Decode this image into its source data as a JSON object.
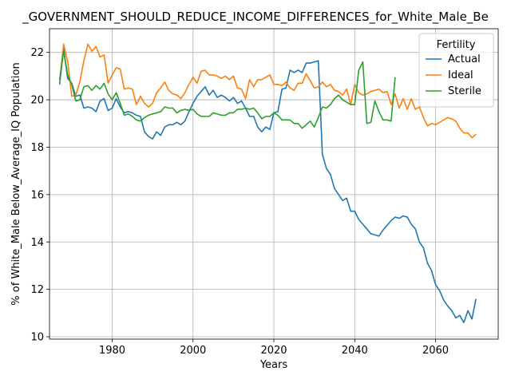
{
  "chart_data": {
    "type": "line",
    "title": "_GOVERNMENT_SHOULD_REDUCE_INCOME_DIFFERENCES_for_White_Male_Be",
    "xlabel": "Years",
    "ylabel": "% of White_Male Below_Average_IQ Population",
    "xlim": [
      1964.5,
      2075.5
    ],
    "ylim": [
      9.9,
      23.0
    ],
    "xticks": [
      1980,
      2000,
      2020,
      2040,
      2060
    ],
    "yticks": [
      10,
      12,
      14,
      16,
      18,
      20,
      22
    ],
    "grid": true,
    "legend": {
      "title": "Fertility",
      "position": "top-right"
    },
    "series": [
      {
        "name": "Actual",
        "color": "#1f77b4",
        "points": [
          [
            1967,
            20.65
          ],
          [
            1968,
            22.15
          ],
          [
            1969,
            20.9
          ],
          [
            1970,
            20.7
          ],
          [
            1971,
            20.15
          ],
          [
            1972,
            20.2
          ],
          [
            1973,
            19.65
          ],
          [
            1974,
            19.7
          ],
          [
            1975,
            19.65
          ],
          [
            1976,
            19.5
          ],
          [
            1977,
            19.95
          ],
          [
            1978,
            20.05
          ],
          [
            1979,
            19.55
          ],
          [
            1980,
            19.65
          ],
          [
            1981,
            20.05
          ],
          [
            1982,
            19.7
          ],
          [
            1983,
            19.45
          ],
          [
            1984,
            19.5
          ],
          [
            1985,
            19.45
          ],
          [
            1986,
            19.35
          ],
          [
            1987,
            19.3
          ],
          [
            1988,
            18.65
          ],
          [
            1989,
            18.45
          ],
          [
            1990,
            18.35
          ],
          [
            1991,
            18.65
          ],
          [
            1992,
            18.5
          ],
          [
            1993,
            18.85
          ],
          [
            1994,
            18.95
          ],
          [
            1995,
            18.95
          ],
          [
            1996,
            19.05
          ],
          [
            1997,
            18.95
          ],
          [
            1998,
            19.1
          ],
          [
            1999,
            19.5
          ],
          [
            2000,
            19.85
          ],
          [
            2001,
            20.15
          ],
          [
            2002,
            20.35
          ],
          [
            2003,
            20.55
          ],
          [
            2004,
            20.2
          ],
          [
            2005,
            20.4
          ],
          [
            2006,
            20.1
          ],
          [
            2007,
            20.2
          ],
          [
            2008,
            20.1
          ],
          [
            2009,
            19.95
          ],
          [
            2010,
            20.1
          ],
          [
            2011,
            19.85
          ],
          [
            2012,
            19.95
          ],
          [
            2013,
            19.65
          ],
          [
            2014,
            19.3
          ],
          [
            2015,
            19.3
          ],
          [
            2016,
            18.85
          ],
          [
            2017,
            18.65
          ],
          [
            2018,
            18.85
          ],
          [
            2019,
            18.75
          ],
          [
            2020,
            19.45
          ],
          [
            2021,
            19.5
          ],
          [
            2022,
            20.45
          ],
          [
            2023,
            20.5
          ],
          [
            2024,
            21.25
          ],
          [
            2025,
            21.15
          ],
          [
            2026,
            21.25
          ],
          [
            2027,
            21.15
          ],
          [
            2028,
            21.55
          ],
          [
            2029,
            21.55
          ],
          [
            2030,
            21.6
          ],
          [
            2031,
            21.65
          ],
          [
            2032,
            17.7
          ],
          [
            2033,
            17.1
          ],
          [
            2034,
            16.85
          ],
          [
            2035,
            16.25
          ],
          [
            2036,
            16.0
          ],
          [
            2037,
            15.75
          ],
          [
            2038,
            15.85
          ],
          [
            2039,
            15.3
          ],
          [
            2040,
            15.3
          ],
          [
            2041,
            14.95
          ],
          [
            2042,
            14.75
          ],
          [
            2043,
            14.55
          ],
          [
            2044,
            14.35
          ],
          [
            2045,
            14.3
          ],
          [
            2046,
            14.25
          ],
          [
            2047,
            14.5
          ],
          [
            2048,
            14.7
          ],
          [
            2049,
            14.9
          ],
          [
            2050,
            15.05
          ],
          [
            2051,
            15.0
          ],
          [
            2052,
            15.1
          ],
          [
            2053,
            15.05
          ],
          [
            2054,
            14.75
          ],
          [
            2055,
            14.55
          ],
          [
            2056,
            14.0
          ],
          [
            2057,
            13.75
          ],
          [
            2058,
            13.1
          ],
          [
            2059,
            12.8
          ],
          [
            2060,
            12.2
          ],
          [
            2061,
            11.95
          ],
          [
            2062,
            11.55
          ],
          [
            2063,
            11.3
          ],
          [
            2064,
            11.1
          ],
          [
            2065,
            10.8
          ],
          [
            2066,
            10.9
          ],
          [
            2067,
            10.6
          ],
          [
            2068,
            11.1
          ],
          [
            2069,
            10.75
          ],
          [
            2070,
            11.6
          ]
        ]
      },
      {
        "name": "Ideal",
        "color": "#ff7f0e",
        "points": [
          [
            1967,
            20.8
          ],
          [
            1968,
            22.35
          ],
          [
            1969,
            21.6
          ],
          [
            1970,
            20.15
          ],
          [
            1971,
            20.2
          ],
          [
            1972,
            20.75
          ],
          [
            1973,
            21.65
          ],
          [
            1974,
            22.35
          ],
          [
            1975,
            22.05
          ],
          [
            1976,
            22.25
          ],
          [
            1977,
            21.8
          ],
          [
            1978,
            21.9
          ],
          [
            1979,
            20.7
          ],
          [
            1980,
            21.05
          ],
          [
            1981,
            21.35
          ],
          [
            1982,
            21.3
          ],
          [
            1983,
            20.45
          ],
          [
            1984,
            20.5
          ],
          [
            1985,
            20.45
          ],
          [
            1986,
            19.8
          ],
          [
            1987,
            20.15
          ],
          [
            1988,
            19.85
          ],
          [
            1989,
            19.7
          ],
          [
            1990,
            19.85
          ],
          [
            1991,
            20.3
          ],
          [
            1992,
            20.5
          ],
          [
            1993,
            20.75
          ],
          [
            1994,
            20.4
          ],
          [
            1995,
            20.25
          ],
          [
            1996,
            20.2
          ],
          [
            1997,
            20.05
          ],
          [
            1998,
            20.3
          ],
          [
            1999,
            20.65
          ],
          [
            2000,
            20.95
          ],
          [
            2001,
            20.7
          ],
          [
            2002,
            21.2
          ],
          [
            2003,
            21.25
          ],
          [
            2004,
            21.05
          ],
          [
            2005,
            21.05
          ],
          [
            2006,
            21.0
          ],
          [
            2007,
            20.9
          ],
          [
            2008,
            21.0
          ],
          [
            2009,
            20.85
          ],
          [
            2010,
            21.0
          ],
          [
            2011,
            20.5
          ],
          [
            2012,
            20.45
          ],
          [
            2013,
            20.05
          ],
          [
            2014,
            20.85
          ],
          [
            2015,
            20.55
          ],
          [
            2016,
            20.85
          ],
          [
            2017,
            20.85
          ],
          [
            2018,
            20.95
          ],
          [
            2019,
            21.05
          ],
          [
            2020,
            20.65
          ],
          [
            2021,
            20.65
          ],
          [
            2022,
            20.6
          ],
          [
            2023,
            20.75
          ],
          [
            2024,
            20.5
          ],
          [
            2025,
            20.4
          ],
          [
            2026,
            20.7
          ],
          [
            2027,
            20.7
          ],
          [
            2028,
            21.1
          ],
          [
            2029,
            20.8
          ],
          [
            2030,
            20.5
          ],
          [
            2031,
            20.55
          ],
          [
            2032,
            20.75
          ],
          [
            2033,
            20.55
          ],
          [
            2034,
            20.65
          ],
          [
            2035,
            20.4
          ],
          [
            2036,
            20.35
          ],
          [
            2037,
            20.2
          ],
          [
            2038,
            20.45
          ],
          [
            2039,
            19.8
          ],
          [
            2040,
            20.65
          ],
          [
            2041,
            20.3
          ],
          [
            2042,
            20.2
          ],
          [
            2043,
            20.25
          ],
          [
            2044,
            20.35
          ],
          [
            2045,
            20.4
          ],
          [
            2046,
            20.45
          ],
          [
            2047,
            20.3
          ],
          [
            2048,
            20.35
          ],
          [
            2049,
            19.8
          ],
          [
            2050,
            20.25
          ],
          [
            2051,
            19.65
          ],
          [
            2052,
            20.05
          ],
          [
            2053,
            19.6
          ],
          [
            2054,
            20.05
          ],
          [
            2055,
            19.6
          ],
          [
            2056,
            19.7
          ],
          [
            2057,
            19.25
          ],
          [
            2058,
            18.9
          ],
          [
            2059,
            19.0
          ],
          [
            2060,
            18.95
          ],
          [
            2061,
            19.05
          ],
          [
            2062,
            19.15
          ],
          [
            2063,
            19.25
          ],
          [
            2064,
            19.2
          ],
          [
            2065,
            19.1
          ],
          [
            2066,
            18.8
          ],
          [
            2067,
            18.6
          ],
          [
            2068,
            18.6
          ],
          [
            2069,
            18.4
          ],
          [
            2070,
            18.55
          ]
        ]
      },
      {
        "name": "Sterile",
        "color": "#2ca02c",
        "points": [
          [
            1967,
            20.85
          ],
          [
            1968,
            22.05
          ],
          [
            1969,
            21.05
          ],
          [
            1970,
            20.65
          ],
          [
            1971,
            19.95
          ],
          [
            1972,
            20.0
          ],
          [
            1973,
            20.55
          ],
          [
            1974,
            20.6
          ],
          [
            1975,
            20.4
          ],
          [
            1976,
            20.6
          ],
          [
            1977,
            20.45
          ],
          [
            1978,
            20.7
          ],
          [
            1979,
            20.25
          ],
          [
            1980,
            20.0
          ],
          [
            1981,
            20.3
          ],
          [
            1982,
            19.85
          ],
          [
            1983,
            19.35
          ],
          [
            1984,
            19.4
          ],
          [
            1985,
            19.3
          ],
          [
            1986,
            19.15
          ],
          [
            1987,
            19.1
          ],
          [
            1988,
            19.25
          ],
          [
            1989,
            19.35
          ],
          [
            1990,
            19.4
          ],
          [
            1991,
            19.45
          ],
          [
            1992,
            19.5
          ],
          [
            1993,
            19.7
          ],
          [
            1994,
            19.65
          ],
          [
            1995,
            19.65
          ],
          [
            1996,
            19.45
          ],
          [
            1997,
            19.55
          ],
          [
            1998,
            19.6
          ],
          [
            1999,
            19.55
          ],
          [
            2000,
            19.6
          ],
          [
            2001,
            19.4
          ],
          [
            2002,
            19.3
          ],
          [
            2003,
            19.3
          ],
          [
            2004,
            19.3
          ],
          [
            2005,
            19.45
          ],
          [
            2006,
            19.4
          ],
          [
            2007,
            19.35
          ],
          [
            2008,
            19.35
          ],
          [
            2009,
            19.45
          ],
          [
            2010,
            19.45
          ],
          [
            2011,
            19.6
          ],
          [
            2012,
            19.6
          ],
          [
            2013,
            19.65
          ],
          [
            2014,
            19.6
          ],
          [
            2015,
            19.65
          ],
          [
            2016,
            19.45
          ],
          [
            2017,
            19.2
          ],
          [
            2018,
            19.3
          ],
          [
            2019,
            19.3
          ],
          [
            2020,
            19.45
          ],
          [
            2021,
            19.35
          ],
          [
            2022,
            19.15
          ],
          [
            2023,
            19.15
          ],
          [
            2024,
            19.15
          ],
          [
            2025,
            19.0
          ],
          [
            2026,
            19.0
          ],
          [
            2027,
            18.8
          ],
          [
            2028,
            18.95
          ],
          [
            2029,
            19.1
          ],
          [
            2030,
            18.85
          ],
          [
            2031,
            19.25
          ],
          [
            2032,
            19.7
          ],
          [
            2033,
            19.65
          ],
          [
            2034,
            19.8
          ],
          [
            2035,
            20.05
          ],
          [
            2036,
            20.2
          ],
          [
            2037,
            20.0
          ],
          [
            2038,
            19.9
          ],
          [
            2039,
            19.8
          ],
          [
            2040,
            19.8
          ],
          [
            2041,
            21.25
          ],
          [
            2042,
            21.6
          ],
          [
            2043,
            19.0
          ],
          [
            2044,
            19.05
          ],
          [
            2045,
            19.95
          ],
          [
            2046,
            19.5
          ],
          [
            2047,
            19.15
          ],
          [
            2048,
            19.15
          ],
          [
            2049,
            19.1
          ],
          [
            2050,
            20.95
          ]
        ]
      }
    ]
  }
}
